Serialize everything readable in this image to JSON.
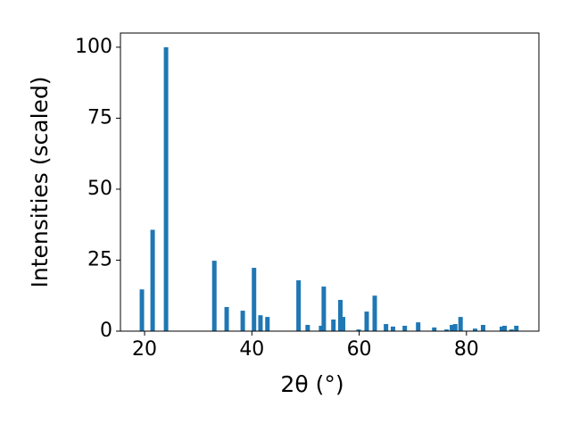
{
  "chart_data": {
    "type": "bar",
    "x_label": "2θ (°)",
    "y_label": "Intensities (scaled)",
    "x": [
      19.5,
      21.5,
      24.0,
      33.0,
      35.3,
      38.3,
      40.4,
      41.6,
      42.9,
      48.7,
      50.4,
      52.9,
      53.4,
      55.2,
      56.5,
      57.0,
      59.9,
      61.4,
      62.9,
      65.0,
      66.3,
      68.5,
      71.0,
      74.0,
      76.3,
      77.3,
      77.9,
      78.9,
      81.6,
      83.1,
      86.6,
      87.1,
      88.4,
      89.3
    ],
    "values": [
      14.7,
      35.7,
      100,
      24.8,
      8.5,
      7.2,
      22.3,
      5.6,
      5.0,
      17.9,
      2.2,
      1.9,
      15.7,
      4.1,
      11.0,
      5.0,
      0.6,
      6.9,
      12.5,
      2.5,
      1.6,
      1.9,
      3.1,
      1.3,
      0.6,
      2.2,
      2.5,
      5.0,
      0.9,
      2.2,
      1.6,
      1.9,
      0.6,
      1.9
    ],
    "color": "#1f77b4",
    "xlim": [
      15.5,
      93.5
    ],
    "xticks": [
      20,
      40,
      60,
      80
    ],
    "ylim": [
      0,
      105
    ],
    "yticks": [
      0,
      25,
      50,
      75,
      100
    ],
    "grid": false
  }
}
